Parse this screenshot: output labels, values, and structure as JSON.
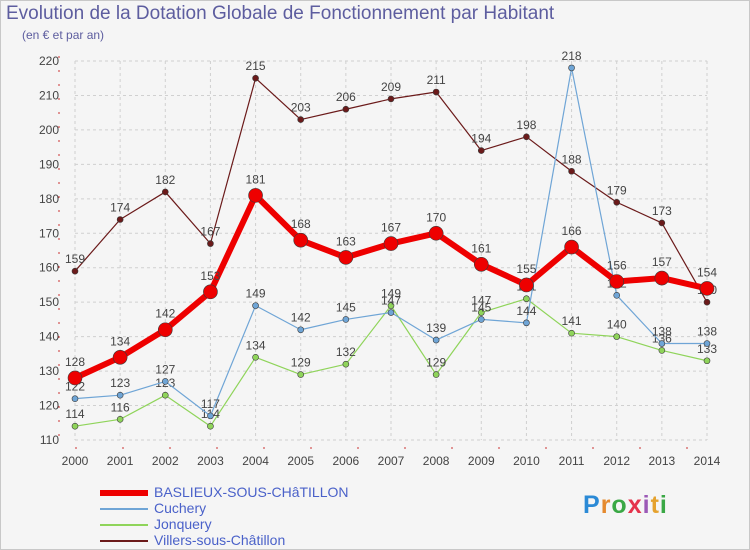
{
  "title": "Evolution de la Dotation Globale de Fonctionnement par Habitant",
  "subtitle": "(en € et par an)",
  "logo": {
    "letters": [
      "P",
      "r",
      "o",
      "x",
      "i",
      "t",
      "i"
    ],
    "colors": [
      "#2b8ad6",
      "#e58a2e",
      "#3aa845",
      "#e5334b",
      "#9b59b6",
      "#e5a22e",
      "#3aa845"
    ]
  },
  "chart_data": {
    "type": "line",
    "x": [
      2000,
      2001,
      2002,
      2003,
      2004,
      2005,
      2006,
      2007,
      2008,
      2009,
      2010,
      2011,
      2012,
      2013,
      2014
    ],
    "ylim": [
      110,
      220
    ],
    "yticks": [
      110,
      120,
      130,
      140,
      150,
      160,
      170,
      180,
      190,
      200,
      210,
      220
    ],
    "grid": true,
    "legend_position": "bottom-left",
    "series": [
      {
        "name": "Villers-sous-Châtillon",
        "color": "#6b1a1a",
        "width": 1.2,
        "marker": 3,
        "values": [
          159,
          174,
          182,
          167,
          215,
          203,
          206,
          209,
          211,
          194,
          198,
          188,
          179,
          173,
          150
        ],
        "labels": [
          "159",
          "174",
          "182",
          "167",
          "215",
          "203",
          "206",
          "209",
          "211",
          "194",
          "198",
          "188",
          "179",
          "173",
          "150"
        ]
      },
      {
        "name": "Jonquery",
        "color": "#8fd45a",
        "width": 1.2,
        "marker": 3,
        "values": [
          114,
          116,
          123,
          114,
          134,
          129,
          132,
          149,
          129,
          147,
          151,
          141,
          140,
          136,
          133
        ],
        "labels": [
          "114",
          "116",
          "123",
          "114",
          "134",
          "129",
          "132",
          "149",
          "129",
          "147",
          "151",
          "141",
          "140",
          "136",
          "133"
        ]
      },
      {
        "name": "Cuchery",
        "color": "#6fa5d6",
        "width": 1.2,
        "marker": 3,
        "values": [
          122,
          123,
          127,
          117,
          149,
          142,
          145,
          147,
          139,
          145,
          144,
          218,
          152,
          138,
          138
        ],
        "labels": [
          "122",
          "123",
          "127",
          "117",
          "149",
          "142",
          "145",
          "147",
          "139",
          "145",
          "144",
          "218",
          "152",
          "138",
          "138"
        ]
      },
      {
        "name": "BASLIEUX-SOUS-CHâTILLON",
        "color": "#ee0000",
        "width": 6,
        "marker": 7,
        "values": [
          128,
          134,
          142,
          153,
          181,
          168,
          163,
          167,
          170,
          161,
          155,
          166,
          156,
          157,
          154
        ],
        "labels": [
          "128",
          "134",
          "142",
          "153",
          "181",
          "168",
          "163",
          "167",
          "170",
          "161",
          "155",
          "166",
          "156",
          "157",
          "154"
        ]
      }
    ]
  }
}
